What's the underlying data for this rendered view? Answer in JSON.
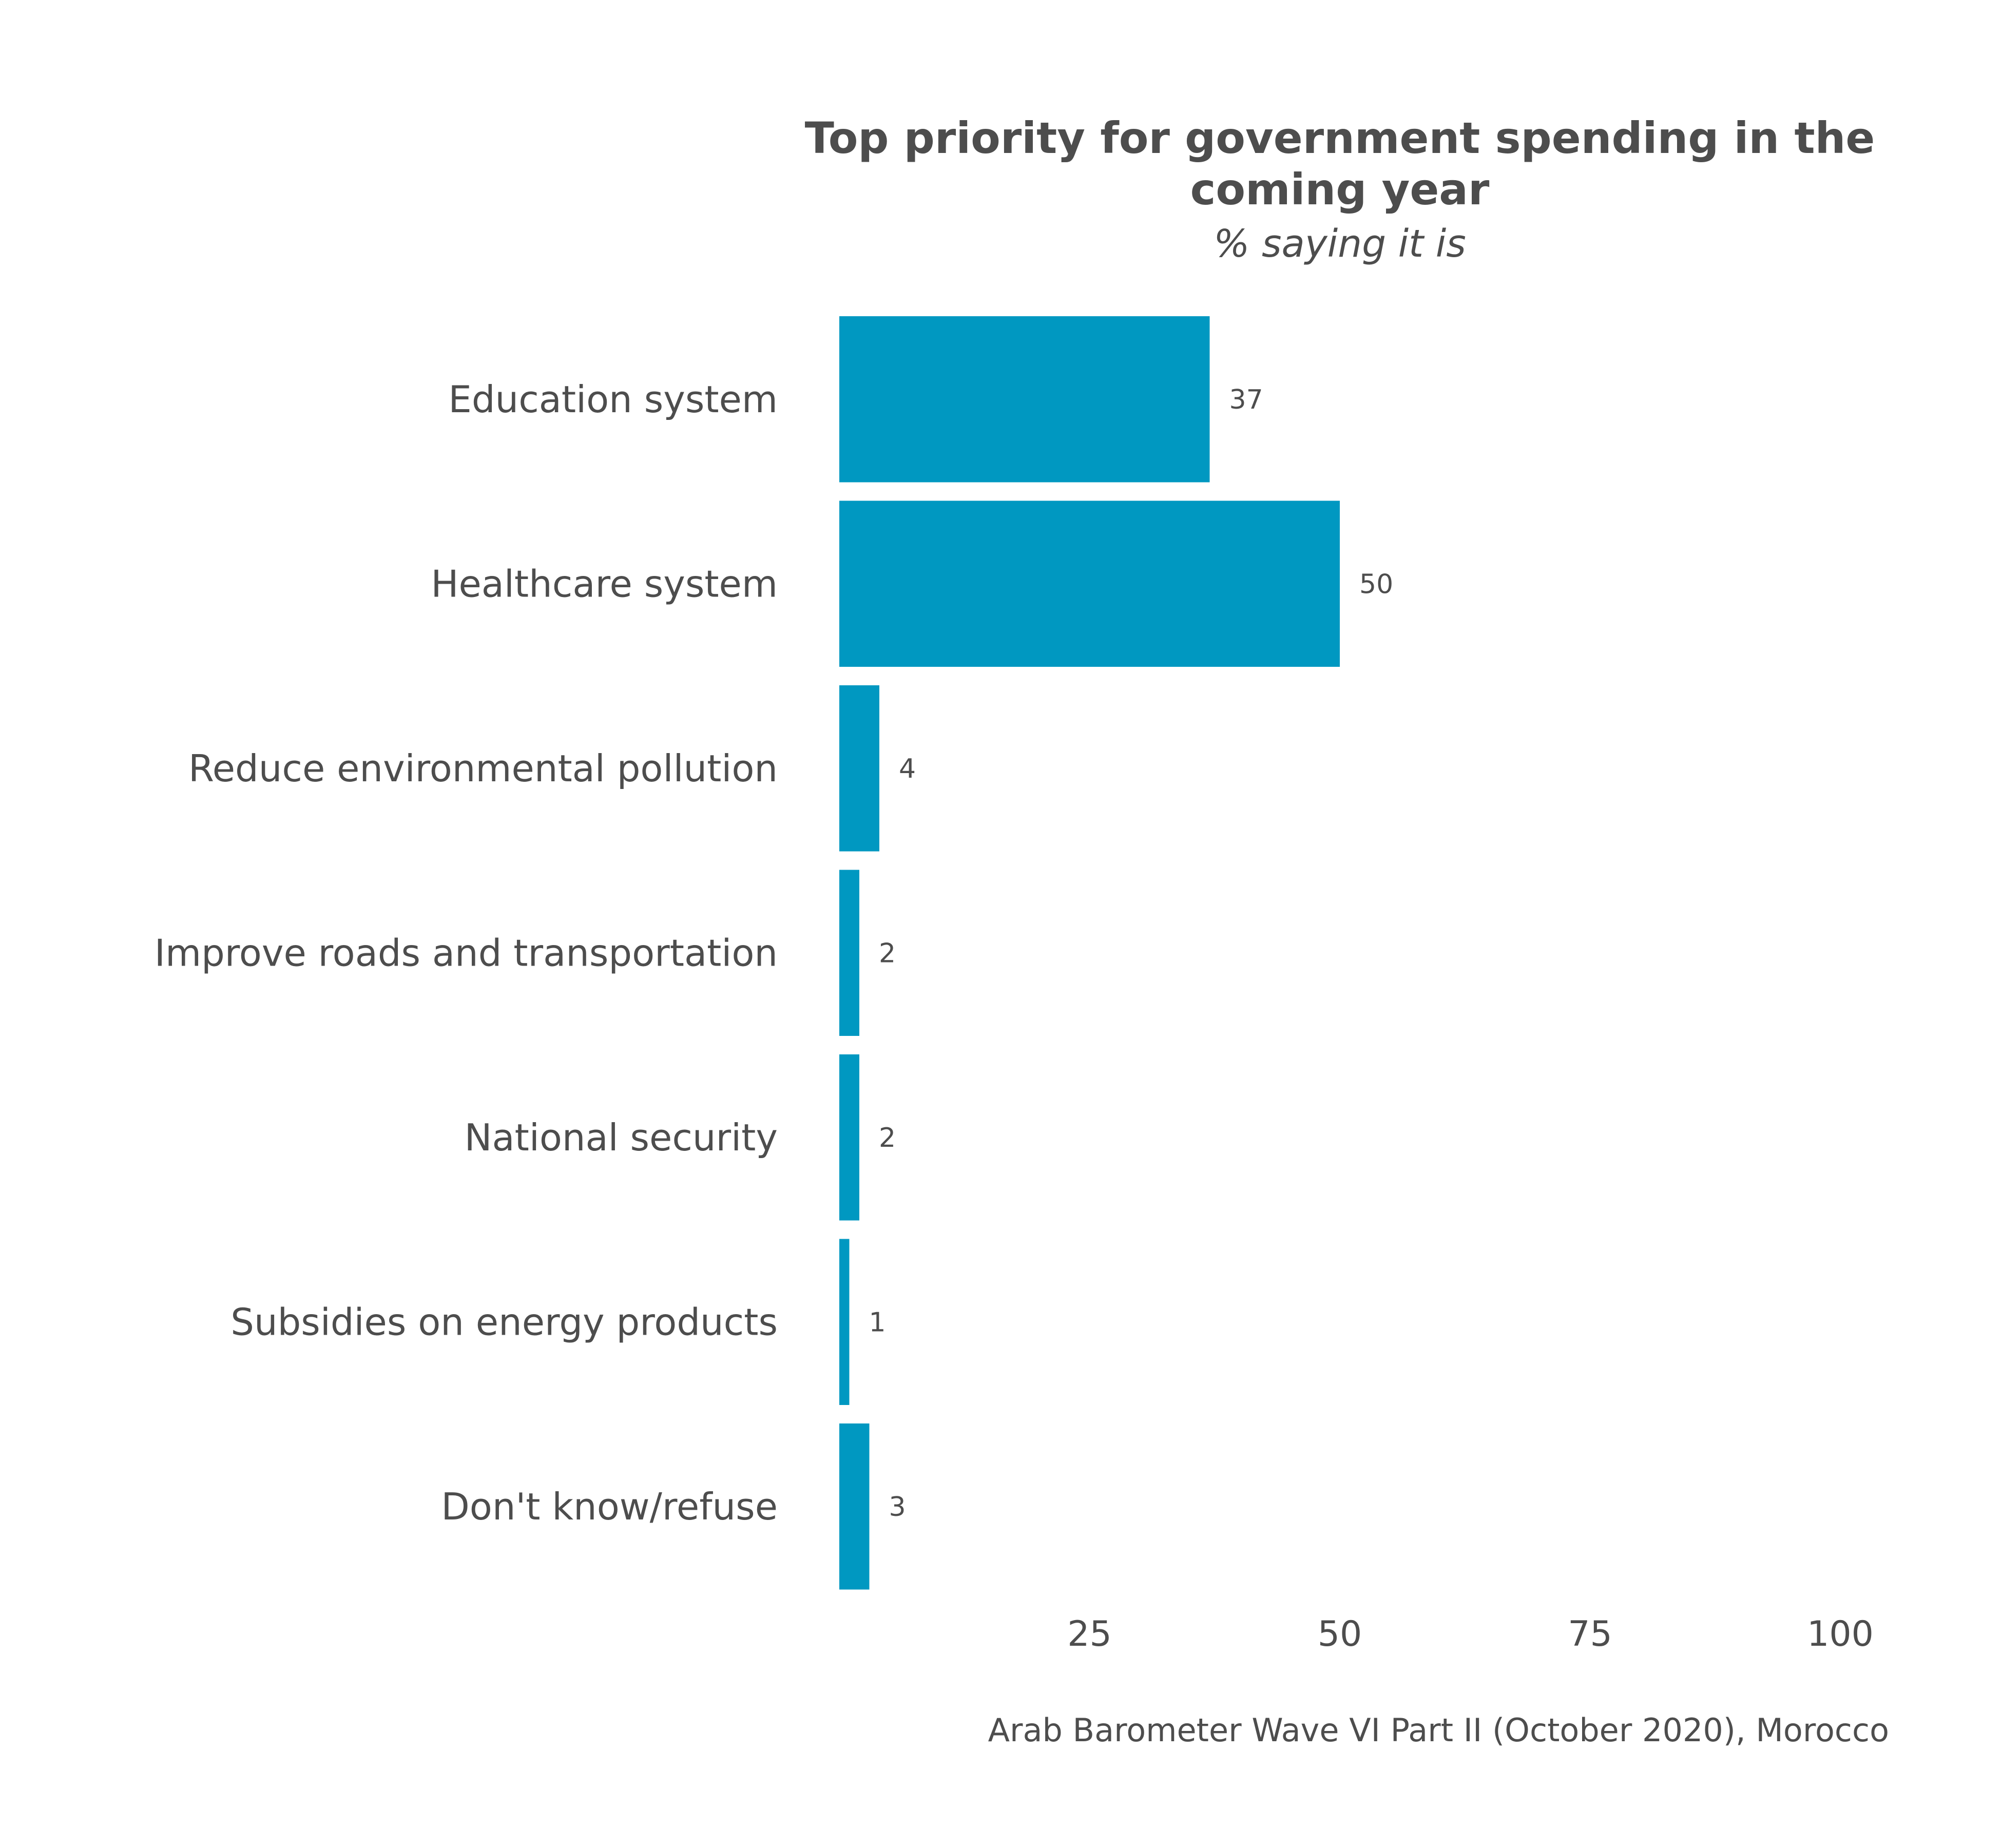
{
  "chart_data": {
    "type": "bar",
    "orientation": "horizontal",
    "title_lines": [
      "Top priority for government spending in the",
      "coming year"
    ],
    "subtitle": "% saying it is",
    "caption": "Arab Barometer Wave VI Part II (October 2020), Morocco",
    "categories": [
      "Education system",
      "Healthcare system",
      "Reduce environmental pollution",
      "Improve roads and transportation",
      "National security",
      "Subsidies on energy products",
      "Don't know/refuse"
    ],
    "values": [
      37,
      50,
      4,
      2,
      2,
      1,
      3
    ],
    "xlim": [
      0,
      100
    ],
    "xticks": [
      25,
      50,
      75,
      100
    ],
    "xlabel": "",
    "ylabel": "",
    "grid": false,
    "legend": "none",
    "bar_color": "#0098C1"
  }
}
